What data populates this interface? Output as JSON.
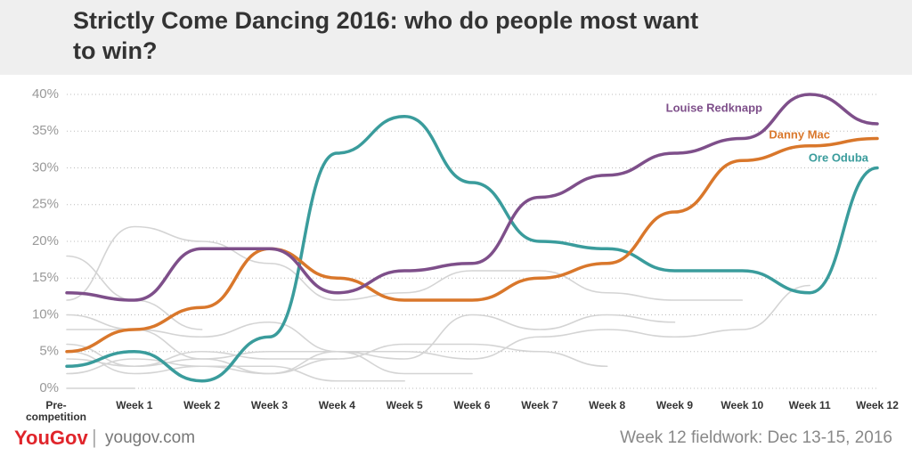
{
  "chart_data": {
    "type": "line",
    "title": "Strictly Come Dancing 2016: who do people most want\nto win?",
    "brand": "YouGov",
    "website": "yougov.com",
    "note": "Week 12 fieldwork: Dec 13-15, 2016",
    "categories": [
      "Pre-\ncompetition",
      "Week 1",
      "Week 2",
      "Week 3",
      "Week 4",
      "Week 5",
      "Week 6",
      "Week 7",
      "Week 8",
      "Week 9",
      "Week 10",
      "Week 11",
      "Week 12"
    ],
    "ylim": [
      0,
      40
    ],
    "yticks": [
      {
        "value": 0,
        "label": "0%"
      },
      {
        "value": 5,
        "label": "5%"
      },
      {
        "value": 10,
        "label": "10%"
      },
      {
        "value": 15,
        "label": "15%"
      },
      {
        "value": 20,
        "label": "20%"
      },
      {
        "value": 25,
        "label": "25%"
      },
      {
        "value": 30,
        "label": "30%"
      },
      {
        "value": 35,
        "label": "35%"
      },
      {
        "value": 40,
        "label": "40%"
      }
    ],
    "grid": true,
    "series": [
      {
        "color": "#d4d4d4",
        "values": [
          18,
          12,
          8,
          null,
          null,
          null,
          null,
          null,
          null,
          null,
          null,
          null,
          null
        ]
      },
      {
        "color": "#d4d4d4",
        "values": [
          12,
          22,
          20,
          17,
          12,
          13,
          16,
          16,
          13,
          12,
          12,
          null,
          null
        ]
      },
      {
        "color": "#d4d4d4",
        "values": [
          8,
          8,
          7,
          9,
          5,
          4,
          10,
          8,
          10,
          9,
          null,
          null,
          null
        ]
      },
      {
        "color": "#d4d4d4",
        "values": [
          6,
          3,
          5,
          4,
          4,
          6,
          6,
          5,
          3,
          null,
          null,
          null,
          null
        ]
      },
      {
        "color": "#d4d4d4",
        "values": [
          2,
          4,
          3,
          2,
          5,
          5,
          4,
          7,
          8,
          7,
          8,
          14,
          null
        ]
      },
      {
        "color": "#d4d4d4",
        "values": [
          0,
          0,
          null,
          null,
          null,
          null,
          null,
          null,
          null,
          null,
          null,
          null,
          null
        ]
      },
      {
        "color": "#d4d4d4",
        "values": [
          4,
          3,
          4,
          5,
          5,
          2,
          2,
          null,
          null,
          null,
          null,
          null,
          null
        ]
      },
      {
        "color": "#d4d4d4",
        "values": [
          5,
          2,
          3,
          3,
          1,
          1,
          null,
          null,
          null,
          null,
          null,
          null,
          null
        ]
      },
      {
        "color": "#d4d4d4",
        "values": [
          10,
          8,
          4,
          2,
          4,
          null,
          null,
          null,
          null,
          null,
          null,
          null,
          null
        ]
      },
      {
        "name": "Ore Oduba",
        "color": "#3a9c9c",
        "values": [
          3,
          5,
          1,
          7,
          32,
          37,
          28,
          20,
          19,
          16,
          16,
          13,
          30
        ]
      },
      {
        "name": "Danny Mac",
        "color": "#d9772b",
        "values": [
          5,
          8,
          11,
          19,
          15,
          12,
          12,
          15,
          17,
          24,
          31,
          33,
          34
        ]
      },
      {
        "name": "Louise Redknapp",
        "color": "#7e4f8a",
        "values": [
          13,
          12,
          19,
          19,
          13,
          16,
          17,
          26,
          29,
          32,
          34,
          40,
          36
        ]
      }
    ]
  }
}
